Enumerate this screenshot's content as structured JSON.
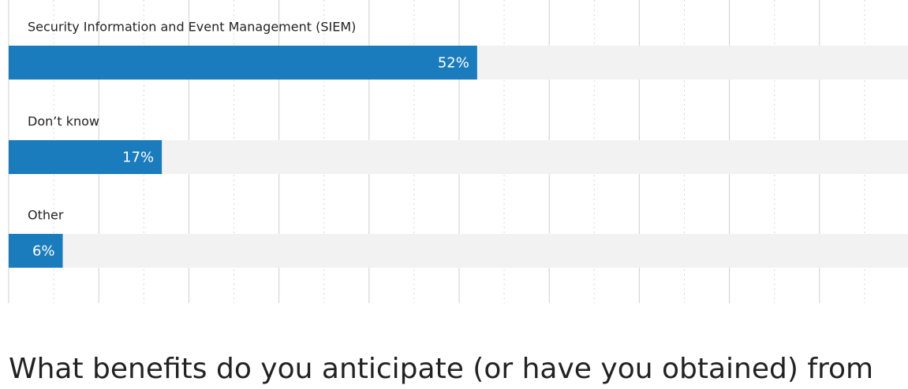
{
  "chart_data": {
    "type": "bar",
    "orientation": "horizontal",
    "categories": [
      "Security Information and Event Management (SIEM)",
      "Don’t know",
      "Other"
    ],
    "values": [
      52,
      17,
      6
    ],
    "value_labels": [
      "52%",
      "17%",
      "6%"
    ],
    "color": "#1b7cbd",
    "track_color": "#f2f2f2",
    "xlim": [
      0,
      100
    ],
    "xticks": [
      0,
      10,
      20,
      30,
      40,
      50,
      60,
      70,
      80,
      90,
      100
    ],
    "minor_xticks": [
      5,
      15,
      25,
      35,
      45,
      55,
      65,
      75,
      85,
      95
    ],
    "grid": true
  },
  "heading": "What benefits do you anticipate (or have you obtained) from"
}
